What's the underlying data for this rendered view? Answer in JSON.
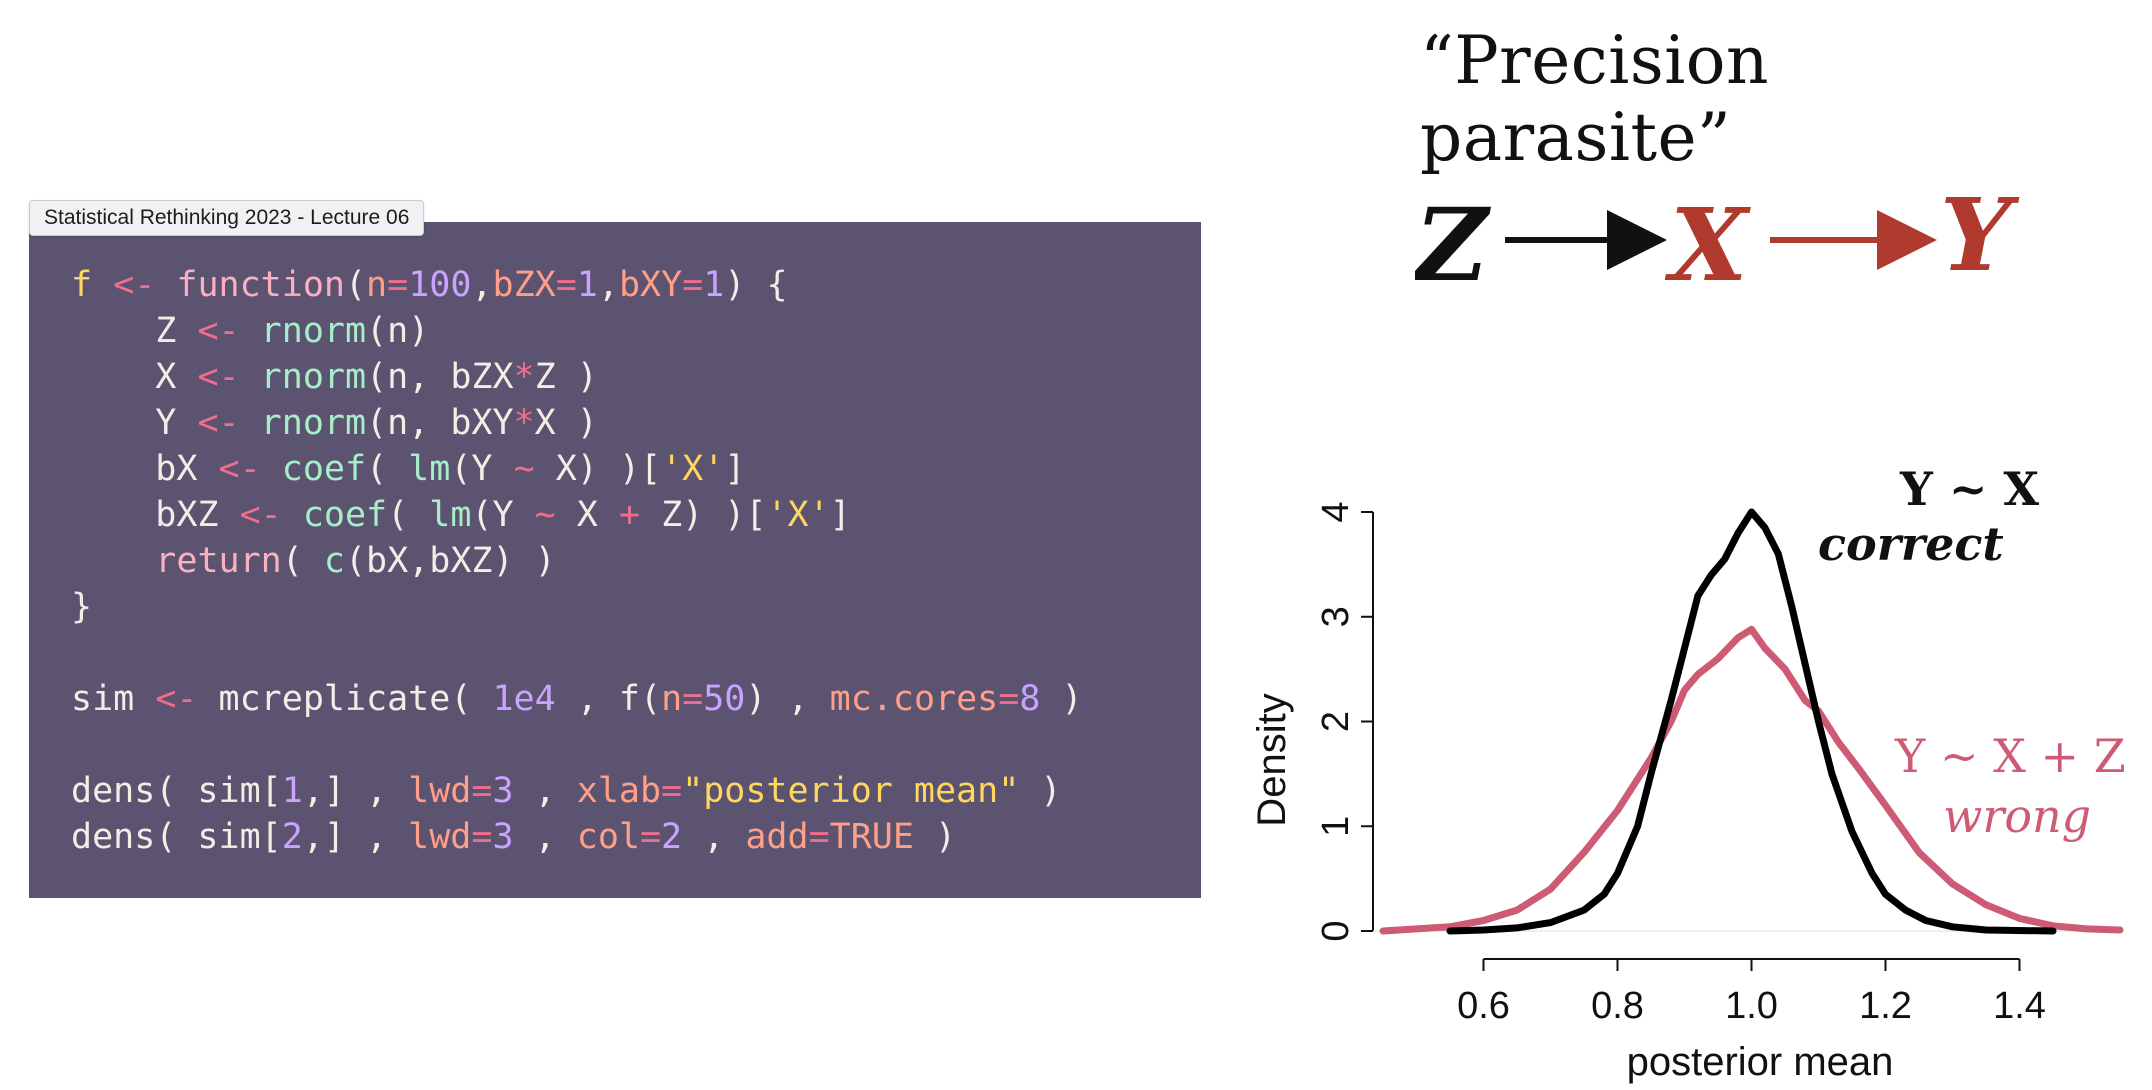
{
  "window": {
    "title": "Statistical Rethinking 2023 - Lecture 06"
  },
  "slide": {
    "title": "“Precision parasite”",
    "dag": {
      "nodes": [
        "Z",
        "X",
        "Y"
      ],
      "colors": {
        "Z": "#111111",
        "X": "#b03a2e",
        "Y": "#b03a2e"
      }
    }
  },
  "code": {
    "lines": [
      "f <- function(n=100,bZX=1,bXY=1) {",
      "    Z <- rnorm(n)",
      "    X <- rnorm(n, bZX*Z )",
      "    Y <- rnorm(n, bXY*X )",
      "    bX <- coef( lm(Y ~ X) )['X']",
      "    bXZ <- coef( lm(Y ~ X + Z) )['X']",
      "    return( c(bX,bXZ) )",
      "}",
      "",
      "sim <- mcreplicate( 1e4 , f(n=50) , mc.cores=8 )",
      "",
      "dens( sim[1,] , lwd=3 , xlab=\"posterior mean\" )",
      "dens( sim[2,] , lwd=3 , col=2 , add=TRUE )"
    ]
  },
  "chart_data": {
    "type": "line",
    "xlabel": "posterior mean",
    "ylabel": "Density",
    "xlim": [
      0.45,
      1.55
    ],
    "ylim": [
      0,
      4
    ],
    "xticks": [
      "0.6",
      "0.8",
      "1.0",
      "1.2",
      "1.4"
    ],
    "yticks": [
      "0",
      "1",
      "2",
      "3",
      "4"
    ],
    "series": [
      {
        "name": "Y ~ X",
        "annotation": "correct",
        "color": "#000000",
        "x": [
          0.55,
          0.6,
          0.65,
          0.7,
          0.75,
          0.78,
          0.8,
          0.83,
          0.85,
          0.88,
          0.9,
          0.92,
          0.94,
          0.96,
          0.98,
          1.0,
          1.02,
          1.04,
          1.06,
          1.08,
          1.1,
          1.12,
          1.15,
          1.18,
          1.2,
          1.23,
          1.26,
          1.3,
          1.35,
          1.45
        ],
        "y": [
          0.0,
          0.01,
          0.03,
          0.08,
          0.2,
          0.35,
          0.55,
          1.0,
          1.5,
          2.2,
          2.7,
          3.2,
          3.4,
          3.55,
          3.8,
          4.0,
          3.85,
          3.6,
          3.1,
          2.55,
          2.0,
          1.5,
          0.95,
          0.55,
          0.35,
          0.2,
          0.1,
          0.04,
          0.01,
          0.0
        ]
      },
      {
        "name": "Y ~ X + Z",
        "annotation": "wrong",
        "color": "#cc5b73",
        "x": [
          0.45,
          0.5,
          0.55,
          0.6,
          0.65,
          0.7,
          0.75,
          0.8,
          0.85,
          0.88,
          0.9,
          0.92,
          0.95,
          0.98,
          1.0,
          1.02,
          1.05,
          1.08,
          1.1,
          1.13,
          1.16,
          1.2,
          1.25,
          1.3,
          1.35,
          1.4,
          1.45,
          1.5,
          1.55
        ],
        "y": [
          0.0,
          0.02,
          0.04,
          0.1,
          0.2,
          0.4,
          0.75,
          1.15,
          1.65,
          2.0,
          2.3,
          2.45,
          2.6,
          2.8,
          2.88,
          2.7,
          2.5,
          2.2,
          2.1,
          1.8,
          1.55,
          1.2,
          0.75,
          0.45,
          0.25,
          0.12,
          0.05,
          0.02,
          0.01
        ]
      }
    ]
  }
}
